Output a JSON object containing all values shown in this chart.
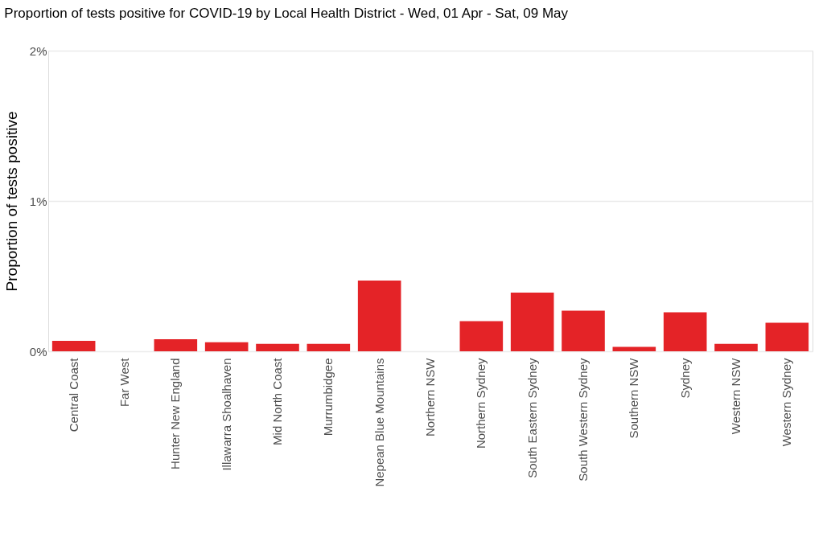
{
  "chart_data": {
    "type": "bar",
    "title": "Proportion of tests positive for COVID-19 by Local Health District - Wed, 01 Apr - Sat, 09 May",
    "ylabel": "Proportion of tests positive",
    "categories": [
      "Central Coast",
      "Far West",
      "Hunter New England",
      "Illawarra Shoalhaven",
      "Mid North Coast",
      "Murrumbidgee",
      "Nepean Blue Mountains",
      "Northern NSW",
      "Northern Sydney",
      "South Eastern Sydney",
      "South Western Sydney",
      "Southern NSW",
      "Sydney",
      "Western NSW",
      "Western Sydney"
    ],
    "values": [
      0.07,
      0,
      0.08,
      0.06,
      0.05,
      0.05,
      0.47,
      0,
      0.2,
      0.39,
      0.27,
      0.03,
      0.26,
      0.05,
      0.19
    ],
    "color": "#e42327",
    "ylim": [
      0,
      2
    ],
    "yticks": [
      {
        "value": 0,
        "label": "0%"
      },
      {
        "value": 1,
        "label": "1%"
      },
      {
        "value": 2,
        "label": "2%"
      }
    ],
    "grid": "y"
  }
}
